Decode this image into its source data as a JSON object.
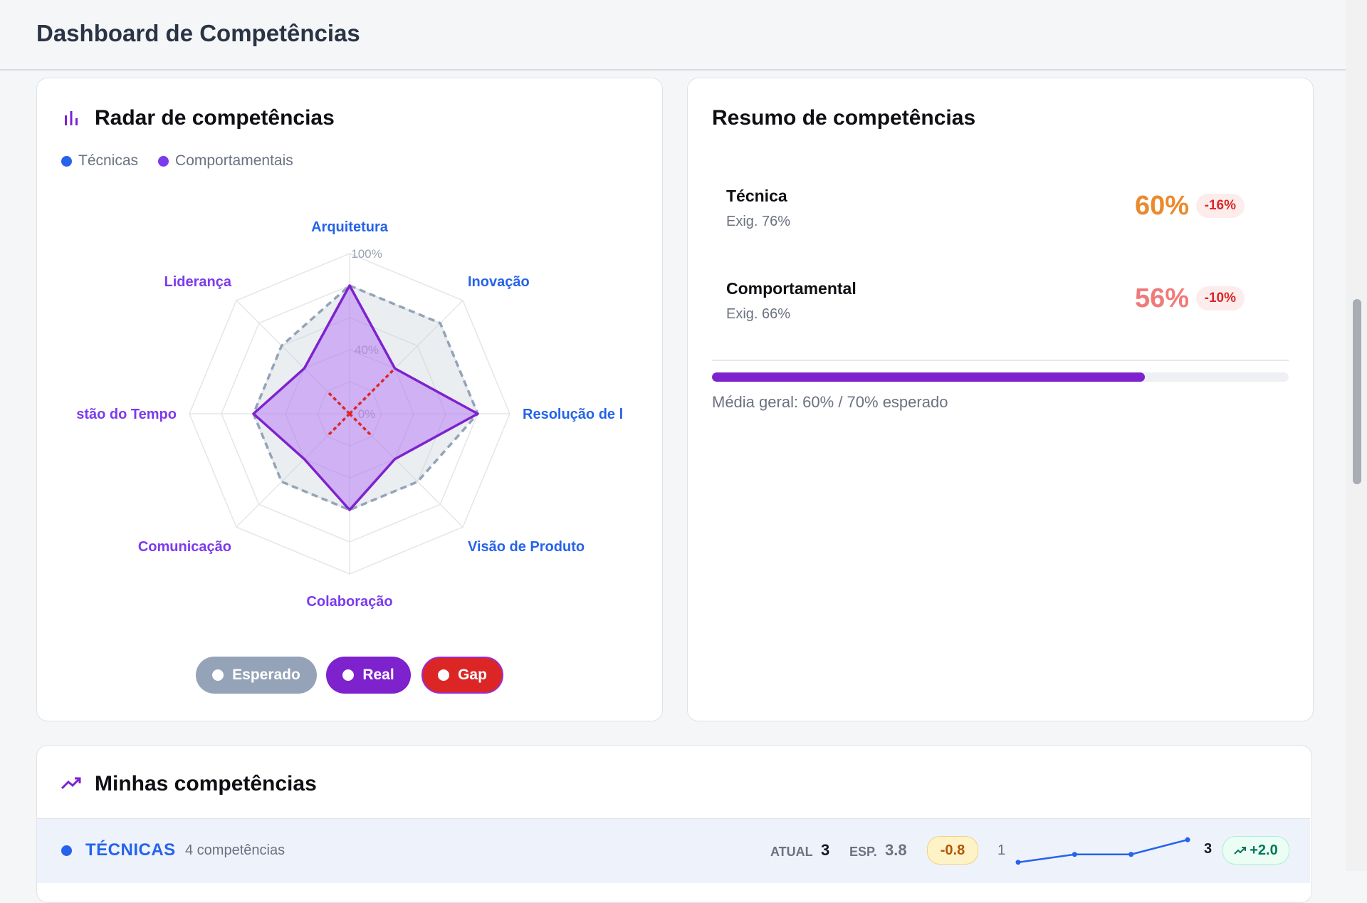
{
  "page": {
    "title": "Dashboard de Competências"
  },
  "radar_card": {
    "title": "Radar de competências",
    "legend": [
      {
        "label": "Técnicas",
        "color": "#2563eb"
      },
      {
        "label": "Comportamentais",
        "color": "#7c3aed"
      }
    ],
    "axis_ticks": [
      "100%",
      "40%",
      "0%"
    ],
    "toggles": [
      {
        "label": "Esperado",
        "color": "#94a3b8"
      },
      {
        "label": "Real",
        "color": "#7e22ce"
      },
      {
        "label": "Gap",
        "color": "#dc2626"
      }
    ]
  },
  "chart_data": {
    "type": "radar",
    "title": "Radar de competências",
    "categories": [
      "Arquitetura",
      "Inovação",
      "Resolução de l",
      "Visão de Produto",
      "Colaboração",
      "Comunicação",
      "stão do Tempo",
      "Liderança"
    ],
    "category_groups": [
      "Técnicas",
      "Técnicas",
      "Técnicas",
      "Técnicas",
      "Comportamentais",
      "Comportamentais",
      "Comportamentais",
      "Comportamentais"
    ],
    "series": [
      {
        "name": "Esperado",
        "values": [
          80,
          80,
          80,
          60,
          60,
          60,
          60,
          60
        ],
        "style": "dashed",
        "color": "#94a3b8"
      },
      {
        "name": "Real",
        "values": [
          80,
          40,
          80,
          40,
          60,
          40,
          60,
          40
        ],
        "color": "#7e22ce"
      },
      {
        "name": "Gap",
        "values": [
          0,
          40,
          0,
          20,
          0,
          20,
          0,
          20
        ],
        "style": "dotted",
        "color": "#dc2626"
      }
    ],
    "ylim": [
      0,
      100
    ],
    "tick_labels": [
      "0%",
      "40%",
      "100%"
    ]
  },
  "summary_card": {
    "title": "Resumo de competências",
    "rows": [
      {
        "label": "Técnica",
        "required": "Exig. 76%",
        "value": "60%",
        "delta": "-16%",
        "value_color": "#ea8a2e"
      },
      {
        "label": "Comportamental",
        "required": "Exig. 66%",
        "value": "56%",
        "delta": "-10%",
        "value_color": "#f07a7a"
      }
    ],
    "progress_percent": 75,
    "progress_color": "#7e22ce",
    "average_text": "Média geral: 60% / 70% esperado"
  },
  "competencies_card": {
    "title": "Minhas competências",
    "group": {
      "name": "TÉCNICAS",
      "count_text": "4 competências",
      "current_label": "ATUAL",
      "current_value": "3",
      "expected_label": "ESP.",
      "expected_value": "3.8",
      "gap_badge": "-0.8",
      "trend_start": "1",
      "trend_end": "3",
      "trend_values": [
        1,
        1.7,
        1.7,
        3
      ],
      "trend_badge": "+2.0"
    }
  }
}
